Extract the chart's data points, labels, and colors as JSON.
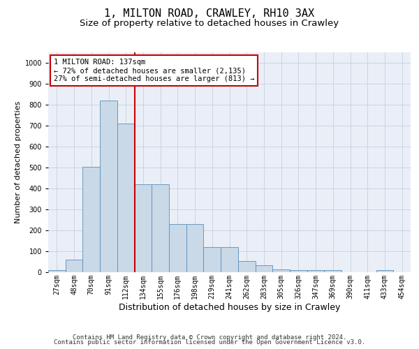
{
  "title1": "1, MILTON ROAD, CRAWLEY, RH10 3AX",
  "title2": "Size of property relative to detached houses in Crawley",
  "xlabel": "Distribution of detached houses by size in Crawley",
  "ylabel": "Number of detached properties",
  "categories": [
    "27sqm",
    "48sqm",
    "70sqm",
    "91sqm",
    "112sqm",
    "134sqm",
    "155sqm",
    "176sqm",
    "198sqm",
    "219sqm",
    "241sqm",
    "262sqm",
    "283sqm",
    "305sqm",
    "326sqm",
    "347sqm",
    "369sqm",
    "390sqm",
    "411sqm",
    "433sqm",
    "454sqm"
  ],
  "values": [
    10,
    60,
    505,
    820,
    710,
    420,
    420,
    230,
    230,
    120,
    120,
    55,
    35,
    15,
    10,
    10,
    10,
    0,
    0,
    10,
    0
  ],
  "bar_color": "#c9d9e8",
  "bar_edge_color": "#5b8db8",
  "vline_x": 4.5,
  "annotation_text": "1 MILTON ROAD: 137sqm\n← 72% of detached houses are smaller (2,135)\n27% of semi-detached houses are larger (813) →",
  "annotation_box_color": "#ffffff",
  "annotation_box_edge_color": "#cc0000",
  "vline_color": "#cc0000",
  "footer1": "Contains HM Land Registry data © Crown copyright and database right 2024.",
  "footer2": "Contains public sector information licensed under the Open Government Licence v3.0.",
  "ylim": [
    0,
    1050
  ],
  "yticks": [
    0,
    100,
    200,
    300,
    400,
    500,
    600,
    700,
    800,
    900,
    1000
  ],
  "grid_color": "#c8d4e4",
  "bg_color": "#eaeff7",
  "title1_fontsize": 11,
  "title2_fontsize": 9.5,
  "xlabel_fontsize": 9,
  "ylabel_fontsize": 8,
  "tick_fontsize": 7,
  "footer_fontsize": 6.5,
  "ann_fontsize": 7.5
}
